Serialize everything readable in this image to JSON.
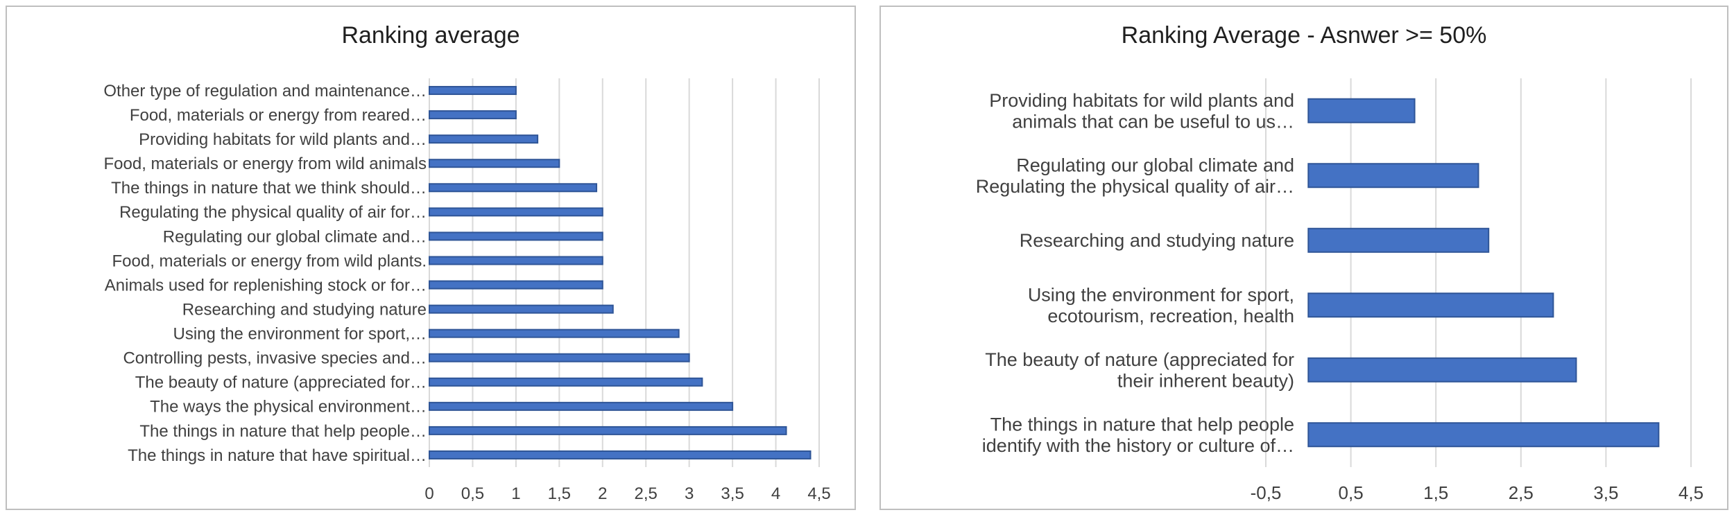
{
  "chart_data": [
    {
      "type": "bar",
      "orientation": "horizontal",
      "title": "Ranking average",
      "categories": [
        "Other type of regulation and maintenance…",
        "Food, materials or energy from reared…",
        "Providing habitats for wild plants and…",
        "Food, materials or energy from wild animals",
        "The things in nature that we think should…",
        "Regulating the physical quality of air for…",
        "Regulating our global climate and…",
        "Food, materials or energy from wild plants.",
        "Animals used for replenishing stock or for…",
        "Researching and studying nature",
        "Using the environment for sport,…",
        "Controlling pests, invasive species and…",
        "The beauty of nature (appreciated for…",
        "The ways the physical environment…",
        "The things in nature that help people…",
        "The things in nature that have spiritual…"
      ],
      "values": [
        1.0,
        1.0,
        1.25,
        1.5,
        1.93,
        2.0,
        2.0,
        2.0,
        2.0,
        2.12,
        2.88,
        3.0,
        3.15,
        3.5,
        4.12,
        4.4
      ],
      "xlim": [
        0,
        4.5
      ],
      "ticks": [
        "0",
        "0,5",
        "1",
        "1,5",
        "2",
        "2,5",
        "3",
        "3,5",
        "4",
        "4,5"
      ],
      "grid": true,
      "color": "#4472c4",
      "edge_color": "#2f5597"
    },
    {
      "type": "bar",
      "orientation": "horizontal",
      "title": "Ranking Average - Asnwer >= 50%",
      "categories": [
        [
          "Providing habitats for wild plants and",
          "animals that can be useful to us…"
        ],
        [
          "Regulating our global climate and",
          "Regulating the physical quality of air…"
        ],
        [
          "Researching and studying nature"
        ],
        [
          "Using the environment for sport,",
          "ecotourism, recreation, health"
        ],
        [
          "The beauty of nature (appreciated for",
          "their inherent beauty)"
        ],
        [
          "The things in nature that help people",
          "identify with the history or culture of…"
        ]
      ],
      "values": [
        1.25,
        2.0,
        2.12,
        2.88,
        3.15,
        4.12
      ],
      "xlim": [
        -0.5,
        4.5
      ],
      "ticks": [
        "-0,5",
        "0,5",
        "1,5",
        "2,5",
        "3,5",
        "4,5"
      ],
      "grid": true,
      "color": "#4472c4",
      "edge_color": "#2f5597"
    }
  ]
}
